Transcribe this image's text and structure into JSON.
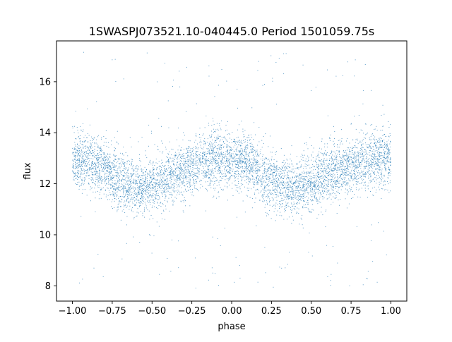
{
  "chart_data": {
    "type": "scatter",
    "title": "1SWASPJ073521.10-040445.0 Period 1501059.75s",
    "xlabel": "phase",
    "ylabel": "flux",
    "xlim": [
      -1.1,
      1.1
    ],
    "ylim": [
      7.4,
      17.6
    ],
    "x_ticks": [
      -1.0,
      -0.75,
      -0.5,
      -0.25,
      0.0,
      0.25,
      0.5,
      0.75,
      1.0
    ],
    "x_tick_labels": [
      "−1.00",
      "−0.75",
      "−0.50",
      "−0.25",
      "0.00",
      "0.25",
      "0.50",
      "0.75",
      "1.00"
    ],
    "y_ticks": [
      8,
      10,
      12,
      14,
      16
    ],
    "y_tick_labels": [
      "8",
      "10",
      "12",
      "14",
      "16"
    ],
    "grid": false,
    "legend": "none",
    "point_color": "#1f77b4",
    "phase_profile": {
      "phase": [
        -1.0,
        -0.9,
        -0.8,
        -0.75,
        -0.7,
        -0.65,
        -0.6,
        -0.55,
        -0.5,
        -0.45,
        -0.4,
        -0.35,
        -0.3,
        -0.25,
        -0.2,
        -0.15,
        -0.1,
        -0.05,
        0.0,
        0.05,
        0.1,
        0.15,
        0.2,
        0.25,
        0.3,
        0.35,
        0.4,
        0.45,
        0.5,
        0.55,
        0.6,
        0.65,
        0.7,
        0.75,
        0.8,
        0.85,
        0.9,
        0.95,
        1.0
      ],
      "mean_flux": [
        13.0,
        12.9,
        12.6,
        12.3,
        12.1,
        12.0,
        11.9,
        11.8,
        11.9,
        12.1,
        12.3,
        12.4,
        12.6,
        12.7,
        12.8,
        12.9,
        13.0,
        13.0,
        13.0,
        12.9,
        12.8,
        12.6,
        12.3,
        12.1,
        12.0,
        11.9,
        11.8,
        11.9,
        12.0,
        12.2,
        12.3,
        12.5,
        12.6,
        12.7,
        12.8,
        12.9,
        13.0,
        13.0,
        13.0
      ],
      "scatter": 0.55,
      "flux_range": [
        7.9,
        17.2
      ]
    },
    "n_points": 6500
  }
}
